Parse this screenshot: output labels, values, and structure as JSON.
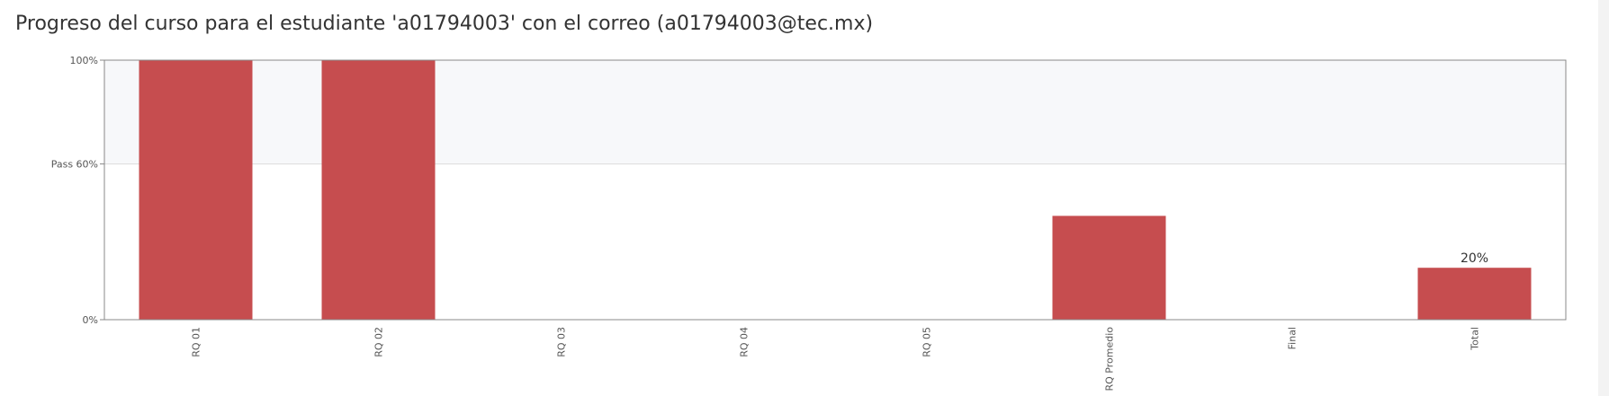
{
  "page_title": "Progreso del curso para el estudiante 'a01794003' con el correo (a01794003@tec.mx)",
  "colors": {
    "bar": "#c64d4f",
    "pass_region": "#f7f8fa",
    "axis": "#888888",
    "grid": "#dcdcdc",
    "text": "#333333"
  },
  "chart_data": {
    "type": "bar",
    "categories": [
      "RQ 01",
      "RQ 02",
      "RQ 03",
      "RQ 04",
      "RQ 05",
      "RQ Promedio",
      "Final",
      "Total"
    ],
    "values": [
      100,
      100,
      0,
      0,
      0,
      40,
      0,
      20
    ],
    "value_labels": [
      "",
      "",
      "",
      "",
      "",
      "",
      "",
      "20%"
    ],
    "ylim": [
      0,
      100
    ],
    "y_ticks": [
      {
        "value": 0,
        "label": "0%"
      },
      {
        "value": 60,
        "label": "Pass 60%"
      },
      {
        "value": 100,
        "label": "100%"
      }
    ],
    "pass_threshold": 60,
    "xlabel": "",
    "ylabel": "",
    "grid": false,
    "x_tick_rotation": -90
  }
}
